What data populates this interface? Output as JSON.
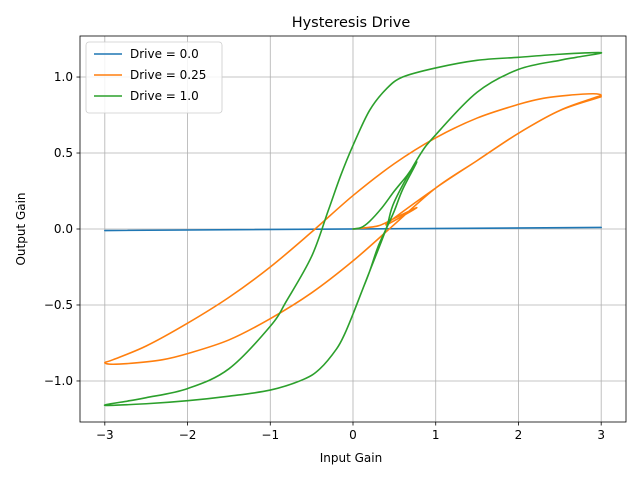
{
  "chart_data": {
    "type": "line",
    "title": "Hysteresis Drive",
    "xlabel": "Input Gain",
    "ylabel": "Output Gain",
    "xlim": [
      -3.3,
      3.3
    ],
    "ylim": [
      -1.27,
      1.27
    ],
    "xticks": [
      -3,
      -2,
      -1,
      0,
      1,
      2,
      3
    ],
    "xtick_labels": [
      "−3",
      "−2",
      "−1",
      "0",
      "1",
      "2",
      "3"
    ],
    "yticks": [
      -1.0,
      -0.5,
      0.0,
      0.5,
      1.0
    ],
    "ytick_labels": [
      "−1.0",
      "−0.5",
      "0.0",
      "0.5",
      "1.0"
    ],
    "grid": true,
    "legend_position": "upper-left",
    "series": [
      {
        "name": "Drive = 0.0",
        "color": "#1f77b4",
        "points": [
          [
            -3,
            -0.01
          ],
          [
            3,
            0.01
          ]
        ]
      },
      {
        "name": "Drive = 0.25",
        "color": "#ff7f0e",
        "points": [
          [
            0,
            0
          ],
          [
            0.3,
            0.02
          ],
          [
            0.5,
            0.07
          ],
          [
            0.77,
            0.14
          ],
          [
            0.4,
            0.03
          ],
          [
            1.0,
            0.27
          ],
          [
            1.5,
            0.45
          ],
          [
            2.0,
            0.63
          ],
          [
            2.5,
            0.78
          ],
          [
            2.9,
            0.86
          ],
          [
            3.0,
            0.88
          ],
          [
            2.9,
            0.89
          ],
          [
            2.6,
            0.88
          ],
          [
            2.3,
            0.86
          ],
          [
            2.0,
            0.82
          ],
          [
            1.5,
            0.73
          ],
          [
            1.0,
            0.6
          ],
          [
            0.5,
            0.43
          ],
          [
            0.0,
            0.22
          ],
          [
            -0.5,
            -0.02
          ],
          [
            -1.0,
            -0.25
          ],
          [
            -1.5,
            -0.45
          ],
          [
            -2.0,
            -0.62
          ],
          [
            -2.5,
            -0.77
          ],
          [
            -2.9,
            -0.86
          ],
          [
            -3.0,
            -0.88
          ],
          [
            -2.9,
            -0.89
          ],
          [
            -2.6,
            -0.88
          ],
          [
            -2.3,
            -0.86
          ],
          [
            -2.0,
            -0.82
          ],
          [
            -1.5,
            -0.73
          ],
          [
            -1.0,
            -0.59
          ],
          [
            -0.5,
            -0.42
          ],
          [
            0.0,
            -0.21
          ],
          [
            0.5,
            0.03
          ],
          [
            1.0,
            0.27
          ],
          [
            1.5,
            0.45
          ],
          [
            2.0,
            0.63
          ],
          [
            2.5,
            0.78
          ],
          [
            3.0,
            0.87
          ]
        ]
      },
      {
        "name": "Drive = 1.0",
        "color": "#2ca02c",
        "points": [
          [
            0,
            0
          ],
          [
            0.1,
            0.01
          ],
          [
            0.2,
            0.05
          ],
          [
            0.35,
            0.14
          ],
          [
            0.5,
            0.25
          ],
          [
            0.65,
            0.35
          ],
          [
            0.77,
            0.44
          ],
          [
            0.6,
            0.26
          ],
          [
            0.5,
            0.12
          ],
          [
            0.4,
            0.0
          ],
          [
            0.3,
            -0.12
          ],
          [
            0.2,
            -0.28
          ],
          [
            0.1,
            -0.42
          ],
          [
            0.0,
            -0.56
          ],
          [
            -0.1,
            -0.69
          ],
          [
            -0.2,
            -0.79
          ],
          [
            -0.4,
            -0.92
          ],
          [
            -0.6,
            -0.99
          ],
          [
            -1.0,
            -1.06
          ],
          [
            -1.5,
            -1.1
          ],
          [
            -2.0,
            -1.13
          ],
          [
            -2.5,
            -1.15
          ],
          [
            -3.0,
            -1.16
          ],
          [
            -2.7,
            -1.13
          ],
          [
            -2.5,
            -1.11
          ],
          [
            -2.0,
            -1.05
          ],
          [
            -1.5,
            -0.92
          ],
          [
            -1.0,
            -0.64
          ],
          [
            -0.8,
            -0.47
          ],
          [
            -0.5,
            -0.18
          ],
          [
            -0.3,
            0.12
          ],
          [
            -0.15,
            0.35
          ],
          [
            0.0,
            0.55
          ],
          [
            0.2,
            0.78
          ],
          [
            0.4,
            0.92
          ],
          [
            0.6,
            1.0
          ],
          [
            1.0,
            1.06
          ],
          [
            1.5,
            1.11
          ],
          [
            2.0,
            1.13
          ],
          [
            2.5,
            1.15
          ],
          [
            3.0,
            1.16
          ],
          [
            2.7,
            1.13
          ],
          [
            2.5,
            1.11
          ],
          [
            2.0,
            1.05
          ],
          [
            1.5,
            0.9
          ],
          [
            1.0,
            0.62
          ],
          [
            0.8,
            0.48
          ],
          [
            0.5,
            0.18
          ],
          [
            0.4,
            0.0
          ],
          [
            0.2,
            -0.28
          ],
          [
            0.0,
            -0.56
          ]
        ]
      }
    ]
  }
}
